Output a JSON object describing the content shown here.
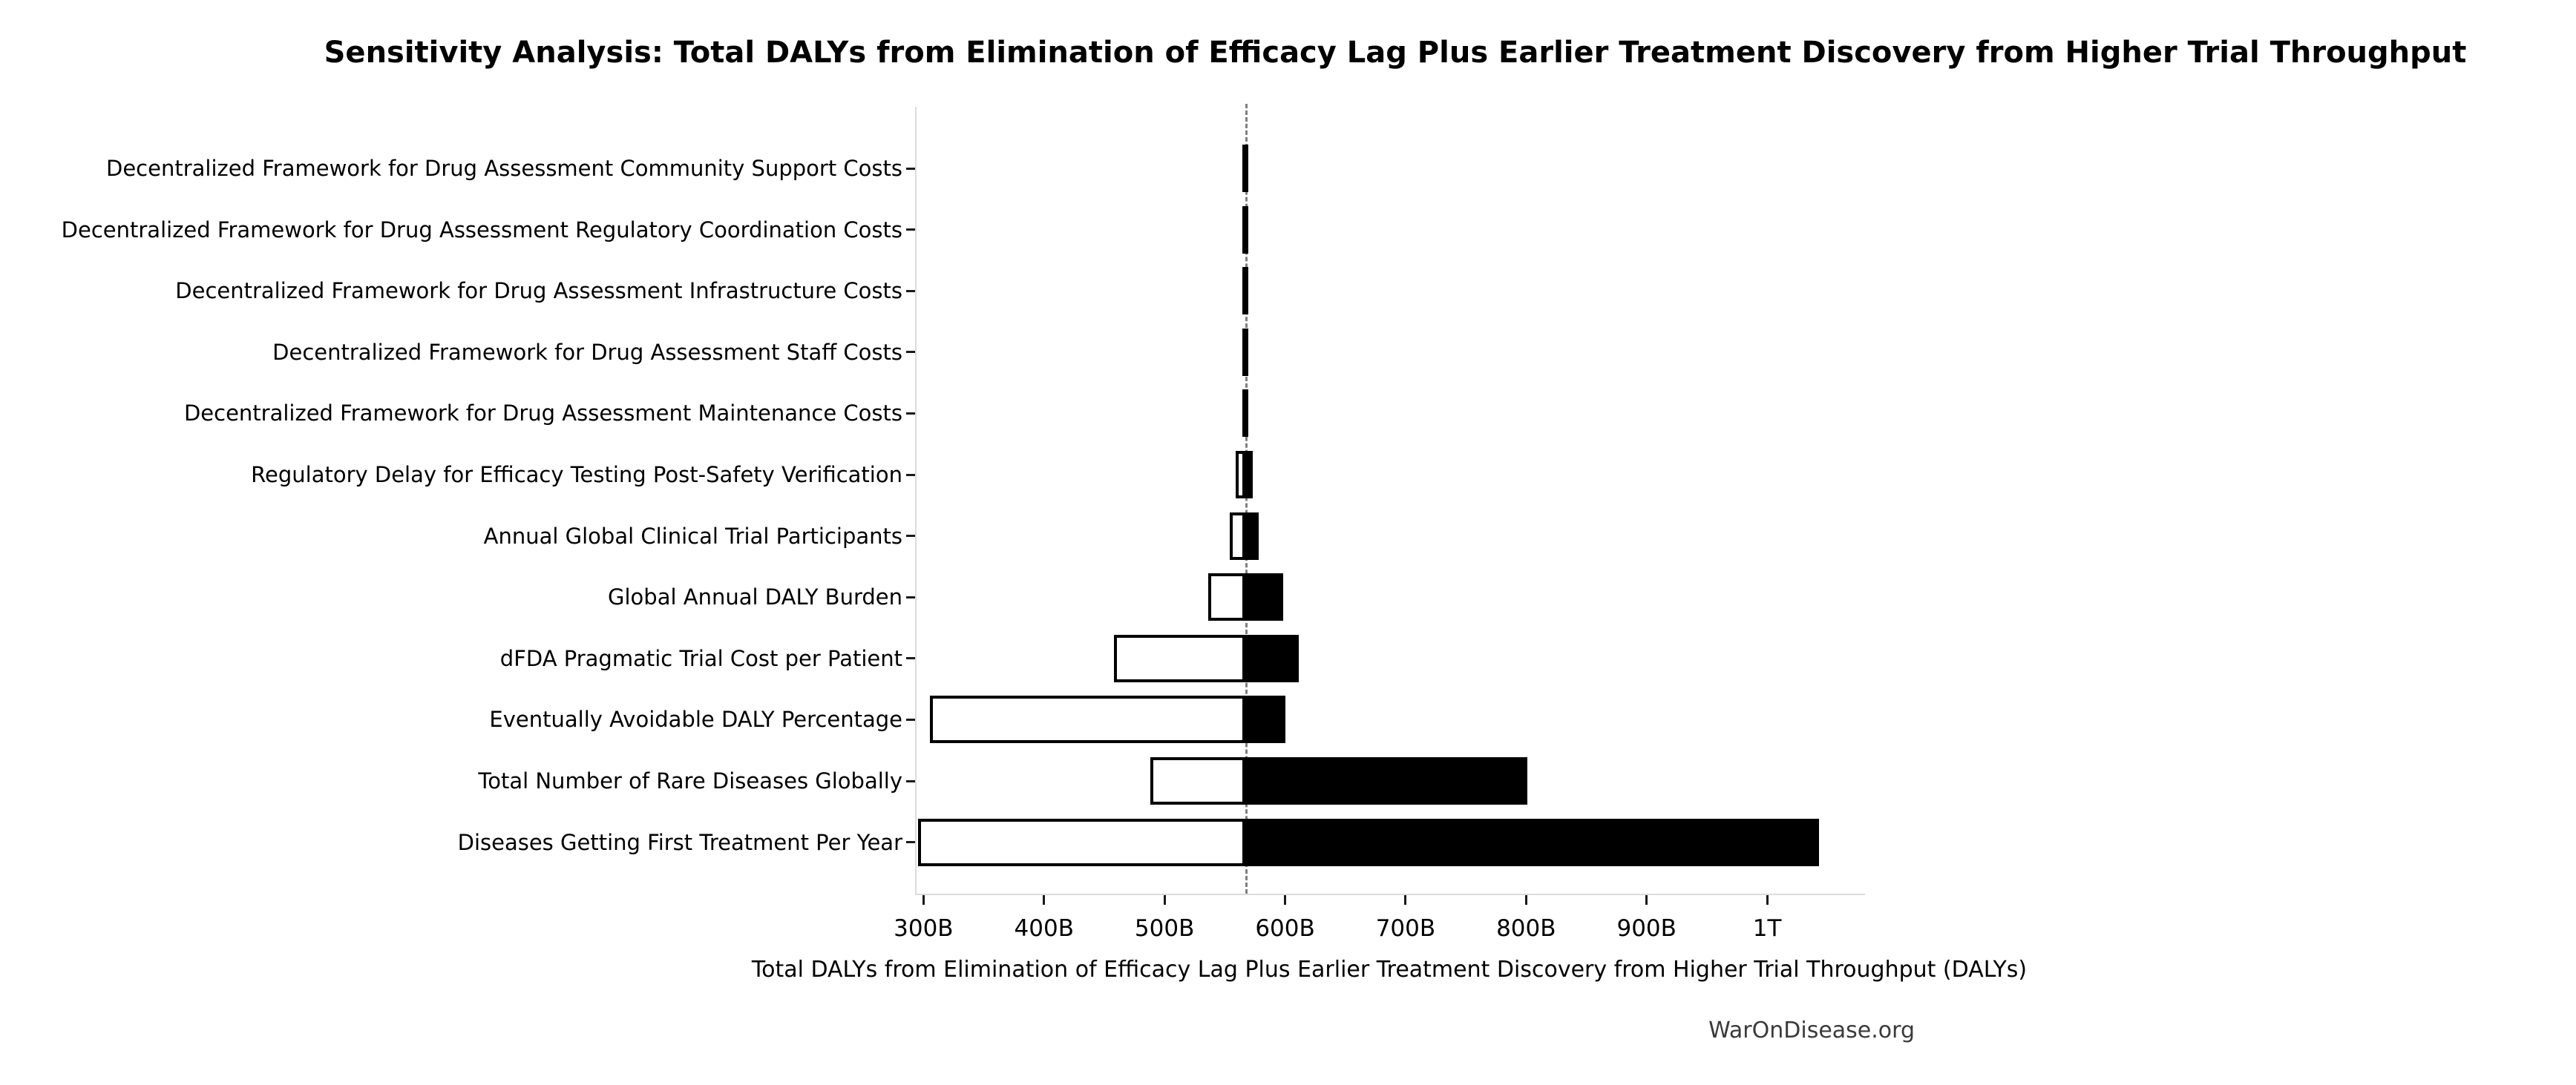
{
  "title": "Sensitivity Analysis: Total DALYs from Elimination of Efficacy Lag Plus Earlier Treatment Discovery from Higher Trial Throughput",
  "xlabel": "Total DALYs from Elimination of Efficacy Lag Plus Earlier Treatment Discovery from Higher Trial Throughput (DALYs)",
  "footer": "WarOnDisease.org",
  "colors": {
    "bar_high_fill": "#000000",
    "bar_low_fill": "#ffffff",
    "bar_edge": "#000000",
    "baseline_dash": "#7f7f7f",
    "spine": "#dcdcdc",
    "tick": "#1a1a1a",
    "text": "#000000",
    "footer_text": "#3a3a3a"
  },
  "chart_data": {
    "type": "bar",
    "subtype": "tornado",
    "orientation": "horizontal",
    "title": "Sensitivity Analysis: Total DALYs from Elimination of Efficacy Lag Plus Earlier Treatment Discovery from Higher Trial Throughput",
    "xlabel": "Total DALYs from Elimination of Efficacy Lag Plus Earlier Treatment Discovery from Higher Trial Throughput (DALYs)",
    "unit": "billion DALYs",
    "baseline_value": 566,
    "x_range": [
      293,
      1080
    ],
    "grid": false,
    "legend": "none",
    "x_ticks": [
      {
        "v": 300,
        "label": "300B"
      },
      {
        "v": 400,
        "label": "400B"
      },
      {
        "v": 500,
        "label": "500B"
      },
      {
        "v": 600,
        "label": "600B"
      },
      {
        "v": 700,
        "label": "700B"
      },
      {
        "v": 800,
        "label": "800B"
      },
      {
        "v": 900,
        "label": "900B"
      },
      {
        "v": 1000,
        "label": "1T"
      }
    ],
    "rows": [
      {
        "label": "Decentralized Framework for Drug Assessment Community Support Costs",
        "low": 563.5,
        "high": 568
      },
      {
        "label": "Decentralized Framework for Drug Assessment Regulatory Coordination Costs",
        "low": 563.5,
        "high": 568
      },
      {
        "label": "Decentralized Framework for Drug Assessment Infrastructure Costs",
        "low": 563.5,
        "high": 568
      },
      {
        "label": "Decentralized Framework for Drug Assessment Staff Costs",
        "low": 563.5,
        "high": 568
      },
      {
        "label": "Decentralized Framework for Drug Assessment Maintenance Costs",
        "low": 563.5,
        "high": 568
      },
      {
        "label": "Regulatory Delay for Efficacy Testing Post-Safety Verification",
        "low": 558,
        "high": 572
      },
      {
        "label": "Annual Global Clinical Trial Participants",
        "low": 553,
        "high": 577
      },
      {
        "label": "Global Annual DALY Burden",
        "low": 535,
        "high": 597
      },
      {
        "label": "dFDA Pragmatic Trial Cost per Patient",
        "low": 457,
        "high": 610
      },
      {
        "label": "Eventually Avoidable DALY Percentage",
        "low": 304,
        "high": 599
      },
      {
        "label": "Total Number of Rare Diseases Globally",
        "low": 487,
        "high": 800
      },
      {
        "label": "Diseases Getting First Treatment Per Year",
        "low": 294,
        "high": 1042
      }
    ]
  }
}
